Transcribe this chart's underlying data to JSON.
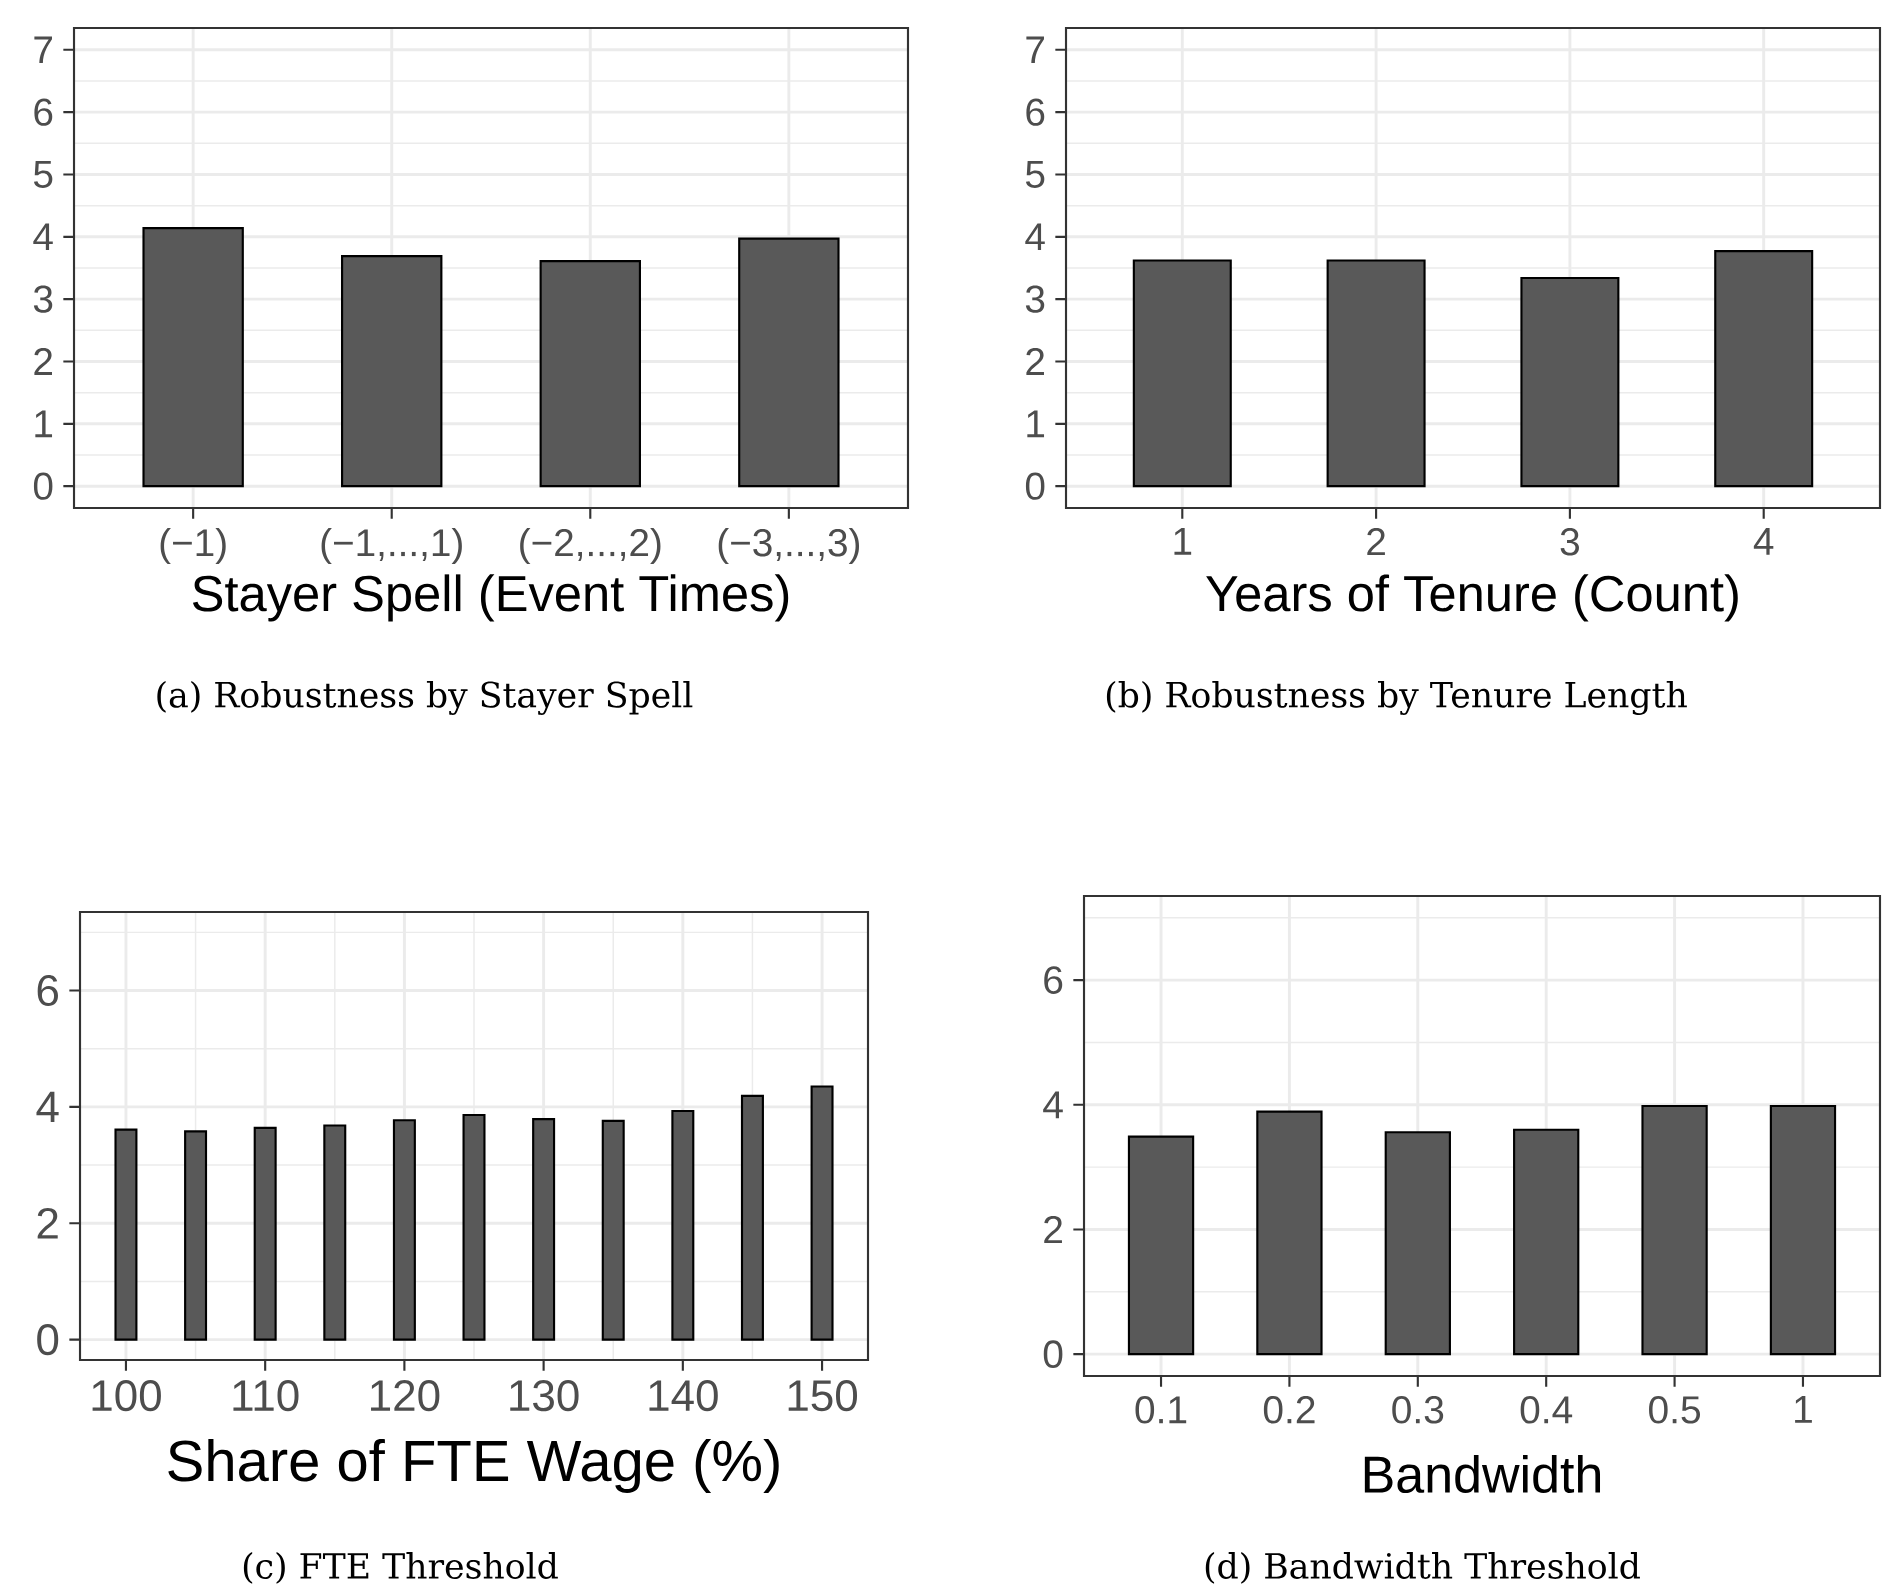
{
  "chart_data": [
    {
      "type": "bar",
      "xlabel": "Stayer Spell (Event Times)",
      "categories": [
        "(−1)",
        "(−1,...,1)",
        "(−2,...,2)",
        "(−3,...,3)"
      ],
      "values": [
        4.14,
        3.69,
        3.61,
        3.97
      ],
      "color": "#595959",
      "ylim": [
        -0.35,
        7.35
      ],
      "yticks": [
        0,
        1,
        2,
        3,
        4,
        5,
        6,
        7
      ],
      "grid": true,
      "annotations": [
        "(a) Robustness by Stayer Spell"
      ]
    },
    {
      "type": "bar",
      "xlabel": "Years of Tenure (Count)",
      "categories": [
        "1",
        "2",
        "3",
        "4"
      ],
      "values": [
        3.62,
        3.62,
        3.34,
        3.77
      ],
      "color": "#595959",
      "ylim": [
        -0.35,
        7.35
      ],
      "yticks": [
        0,
        1,
        2,
        3,
        4,
        5,
        6,
        7
      ],
      "grid": true,
      "annotations": [
        "(b) Robustness by Tenure Length"
      ]
    },
    {
      "type": "bar",
      "xlabel": "Share of FTE Wage (%)",
      "x": [
        100,
        105,
        110,
        115,
        120,
        125,
        130,
        135,
        140,
        145,
        150
      ],
      "values": [
        3.61,
        3.58,
        3.64,
        3.68,
        3.77,
        3.86,
        3.79,
        3.76,
        3.93,
        4.19,
        4.35
      ],
      "color": "#595959",
      "xlim": [
        96.7,
        153.3
      ],
      "xticks": [
        100,
        110,
        120,
        130,
        140,
        150
      ],
      "ylim": [
        -0.35,
        7.35
      ],
      "yticks": [
        0,
        2,
        4,
        6
      ],
      "grid": true,
      "annotations": [
        "(c) FTE Threshold"
      ]
    },
    {
      "type": "bar",
      "xlabel": "Bandwidth",
      "categories": [
        "0.1",
        "0.2",
        "0.3",
        "0.4",
        "0.5",
        "1"
      ],
      "values": [
        3.49,
        3.89,
        3.56,
        3.6,
        3.98,
        3.98
      ],
      "color": "#595959",
      "ylim": [
        -0.35,
        7.35
      ],
      "yticks": [
        0,
        2,
        4,
        6
      ],
      "grid": true,
      "annotations": [
        "(d) Bandwidth Threshold"
      ]
    }
  ]
}
